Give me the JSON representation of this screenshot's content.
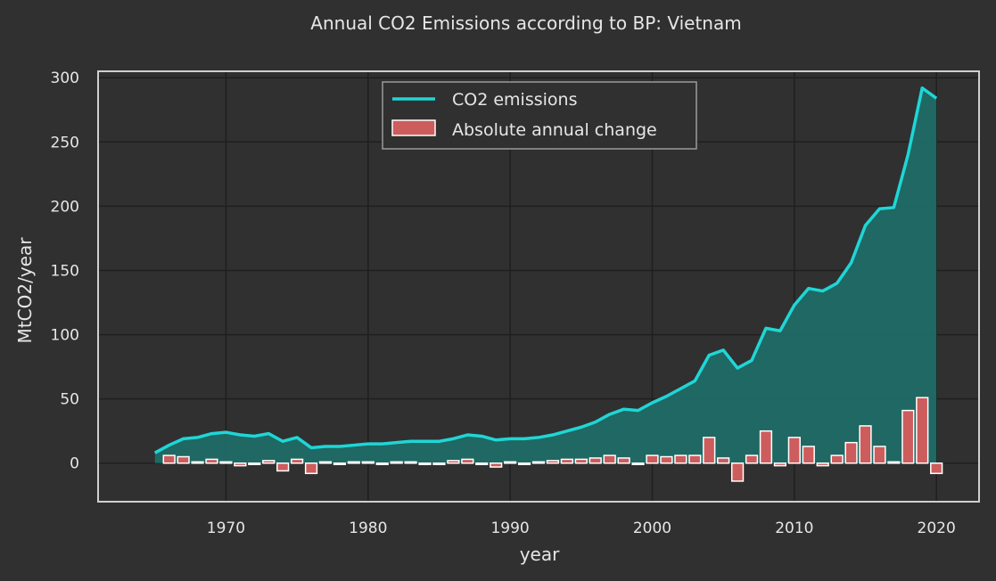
{
  "chart_data": {
    "type": "line",
    "title": "Annual CO2 Emissions according to BP: Vietnam",
    "xlabel": "year",
    "ylabel": "MtCO2/year",
    "xlim": [
      1961,
      2023
    ],
    "ylim": [
      -30,
      305
    ],
    "xticks": [
      1970,
      1980,
      1990,
      2000,
      2010,
      2020
    ],
    "yticks": [
      0,
      50,
      100,
      150,
      200,
      250,
      300
    ],
    "grid": true,
    "legend_position": "top-center",
    "colors": {
      "emissions": "#1fd6d6",
      "fill": "#1f6b66",
      "change": "#cd5c5c",
      "background": "#303030",
      "plot_background": "#303030",
      "grid": "#1f1f1f",
      "frame": "#cfcfcf"
    },
    "series": [
      {
        "name": "CO2 emissions",
        "kind": "line-area",
        "x": [
          1965,
          1966,
          1967,
          1968,
          1969,
          1970,
          1971,
          1972,
          1973,
          1974,
          1975,
          1976,
          1977,
          1978,
          1979,
          1980,
          1981,
          1982,
          1983,
          1984,
          1985,
          1986,
          1987,
          1988,
          1989,
          1990,
          1991,
          1992,
          1993,
          1994,
          1995,
          1996,
          1997,
          1998,
          1999,
          2000,
          2001,
          2002,
          2003,
          2004,
          2005,
          2006,
          2007,
          2008,
          2009,
          2010,
          2011,
          2012,
          2013,
          2014,
          2015,
          2016,
          2017,
          2018,
          2019,
          2020
        ],
        "values": [
          8,
          14,
          19,
          20,
          23,
          24,
          22,
          21,
          23,
          17,
          20,
          12,
          13,
          13,
          14,
          15,
          15,
          16,
          17,
          17,
          17,
          19,
          22,
          21,
          18,
          19,
          19,
          20,
          22,
          25,
          28,
          32,
          38,
          42,
          41,
          47,
          52,
          58,
          64,
          84,
          88,
          74,
          80,
          105,
          103,
          123,
          136,
          134,
          140,
          156,
          185,
          198,
          199,
          240,
          292,
          284
        ]
      },
      {
        "name": "Absolute annual change",
        "kind": "bar",
        "x": [
          1966,
          1967,
          1968,
          1969,
          1970,
          1971,
          1972,
          1973,
          1974,
          1975,
          1976,
          1977,
          1978,
          1979,
          1980,
          1981,
          1982,
          1983,
          1984,
          1985,
          1986,
          1987,
          1988,
          1989,
          1990,
          1991,
          1992,
          1993,
          1994,
          1995,
          1996,
          1997,
          1998,
          1999,
          2000,
          2001,
          2002,
          2003,
          2004,
          2005,
          2006,
          2007,
          2008,
          2009,
          2010,
          2011,
          2012,
          2013,
          2014,
          2015,
          2016,
          2017,
          2018,
          2019,
          2020
        ],
        "values": [
          6,
          5,
          1,
          3,
          1,
          -2,
          -1,
          2,
          -6,
          3,
          -8,
          1,
          0,
          1,
          1,
          0,
          1,
          1,
          0,
          0,
          2,
          3,
          -1,
          -3,
          1,
          0,
          1,
          2,
          3,
          3,
          4,
          6,
          4,
          -1,
          6,
          5,
          6,
          6,
          20,
          4,
          -14,
          6,
          25,
          -2,
          20,
          13,
          -2,
          6,
          16,
          29,
          13,
          1,
          41,
          51,
          -8
        ]
      }
    ]
  }
}
